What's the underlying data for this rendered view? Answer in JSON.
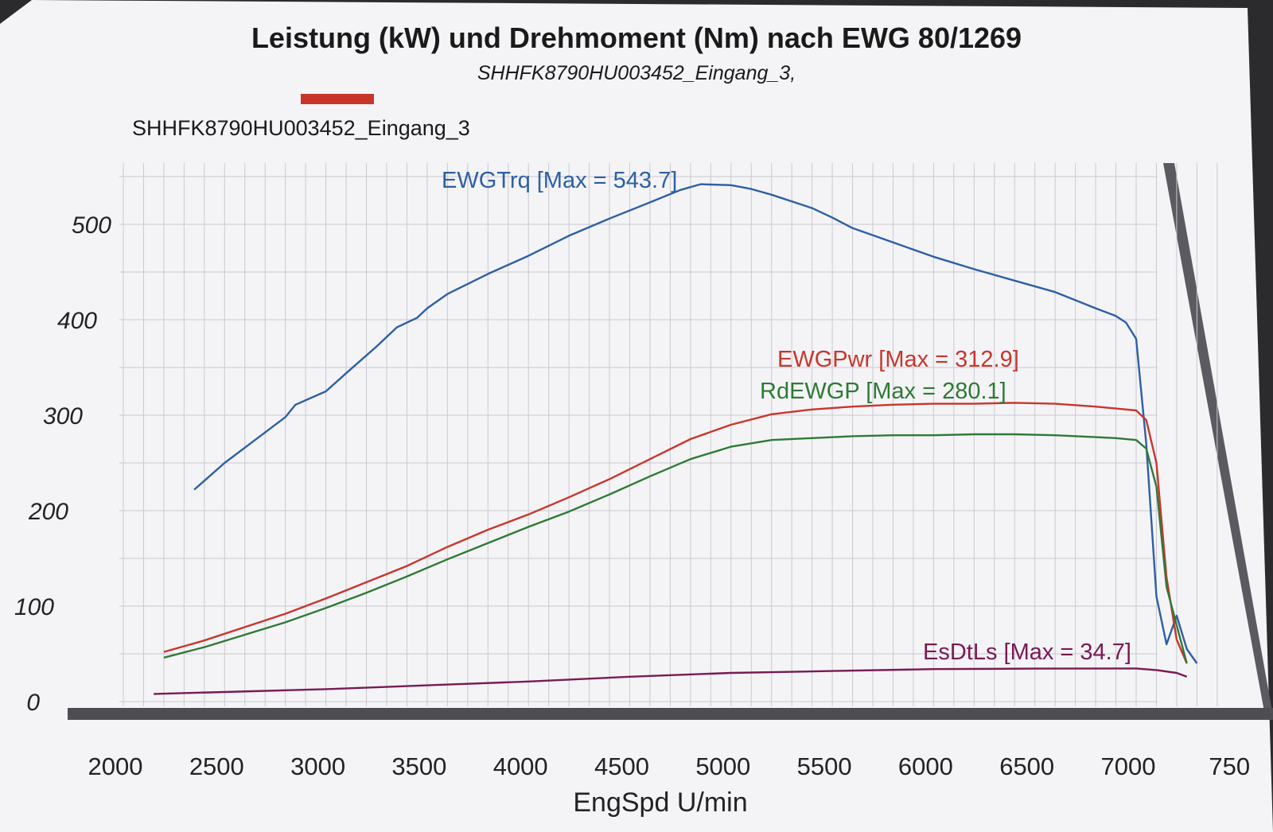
{
  "chart_data": {
    "type": "line",
    "title": "Leistung (kW) und Drehmoment (Nm) nach EWG 80/1269",
    "subtitle": "SHHFK8790HU003452_Eingang_3,",
    "legend": {
      "entry": "SHHFK8790HU003452_Eingang_3",
      "color": "#c8362b"
    },
    "xlabel": "EngSpd U/min",
    "x_ticks": [
      "2000",
      "2500",
      "3000",
      "3500",
      "4000",
      "4500",
      "5000",
      "5500",
      "6000",
      "6500",
      "7000",
      "750"
    ],
    "y_ticks": [
      "0",
      "100",
      "200",
      "300",
      "400",
      "500"
    ],
    "xlim": [
      2000,
      7500
    ],
    "ylim": [
      0,
      560
    ],
    "grid": true,
    "series": [
      {
        "key": "torque",
        "label": "EWGTrq [Max = 543.7]",
        "color": "#2e5fa3",
        "x": [
          2350,
          2500,
          2650,
          2800,
          2850,
          3000,
          3100,
          3250,
          3350,
          3450,
          3500,
          3600,
          3800,
          4000,
          4200,
          4400,
          4600,
          4750,
          4850,
          5000,
          5100,
          5200,
          5400,
          5500,
          5600,
          5800,
          6000,
          6200,
          6400,
          6600,
          6800,
          6900,
          6950,
          7000,
          7050,
          7100,
          7150,
          7200,
          7250,
          7300
        ],
        "y": [
          222,
          250,
          274,
          298,
          311,
          325,
          344,
          372,
          392,
          402,
          412,
          427,
          448,
          467,
          488,
          506,
          523,
          536,
          542,
          541,
          537,
          531,
          517,
          507,
          496,
          481,
          466,
          453,
          441,
          429,
          412,
          404,
          397,
          380,
          270,
          110,
          60,
          90,
          55,
          40
        ]
      },
      {
        "key": "power",
        "label": "EWGPwr [Max = 312.9]",
        "color": "#c8362b",
        "x": [
          2200,
          2400,
          2600,
          2800,
          3000,
          3200,
          3400,
          3600,
          3800,
          4000,
          4200,
          4400,
          4600,
          4800,
          5000,
          5200,
          5400,
          5600,
          5800,
          6000,
          6200,
          6400,
          6600,
          6800,
          6900,
          7000,
          7050,
          7100,
          7150,
          7200,
          7250
        ],
        "y": [
          52,
          64,
          78,
          92,
          108,
          125,
          142,
          162,
          180,
          196,
          214,
          233,
          254,
          275,
          290,
          301,
          306,
          309,
          311,
          312,
          312,
          313,
          312,
          309,
          307,
          305,
          295,
          250,
          130,
          65,
          40
        ]
      },
      {
        "key": "wheel_power",
        "label": "RdEWGP [Max = 280.1]",
        "color": "#2e7a34",
        "x": [
          2200,
          2400,
          2600,
          2800,
          3000,
          3200,
          3400,
          3600,
          3800,
          4000,
          4200,
          4400,
          4600,
          4800,
          5000,
          5200,
          5400,
          5600,
          5800,
          6000,
          6200,
          6400,
          6600,
          6800,
          6900,
          7000,
          7050,
          7100,
          7150,
          7200,
          7250
        ],
        "y": [
          46,
          57,
          70,
          83,
          98,
          114,
          131,
          149,
          166,
          183,
          199,
          217,
          236,
          254,
          267,
          274,
          276,
          278,
          279,
          279,
          280,
          280,
          279,
          277,
          276,
          274,
          265,
          225,
          120,
          80,
          40
        ]
      },
      {
        "key": "drag_loss",
        "label": "EsDtLs [Max = 34.7]",
        "color": "#7a1a52",
        "x": [
          2150,
          2500,
          3000,
          3500,
          4000,
          4500,
          5000,
          5500,
          6000,
          6500,
          7000,
          7100,
          7200,
          7250
        ],
        "y": [
          8,
          10,
          13,
          17,
          21,
          26,
          30,
          32,
          34,
          34.5,
          34.7,
          33,
          30,
          26
        ]
      }
    ]
  }
}
